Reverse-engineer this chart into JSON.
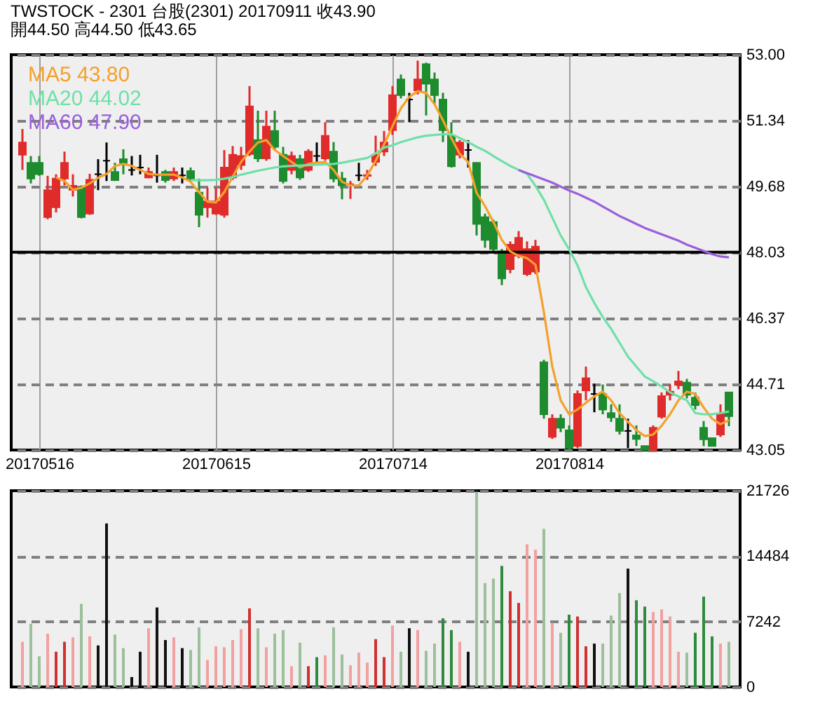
{
  "chart_data": [
    {
      "type": "candlestick",
      "title": "TWSTOCK  -  2301   台股(2301) 20170911     收43.90",
      "subtitle": "開44.50     高44.50     低43.65",
      "categories": [
        null,
        null,
        "20170516",
        null,
        null,
        null,
        null,
        null,
        null,
        null,
        null,
        null,
        null,
        null,
        null,
        null,
        null,
        null,
        null,
        null,
        null,
        null,
        null,
        "20170615",
        null,
        null,
        null,
        null,
        null,
        null,
        null,
        null,
        null,
        null,
        null,
        null,
        null,
        null,
        null,
        null,
        null,
        null,
        null,
        null,
        "20170714",
        null,
        null,
        null,
        null,
        null,
        null,
        null,
        null,
        null,
        null,
        null,
        null,
        null,
        null,
        null,
        null,
        null,
        null,
        null,
        null,
        "20170814",
        null,
        null,
        null,
        null,
        null,
        null,
        null,
        null,
        null,
        null,
        null,
        null,
        null,
        null,
        null,
        null,
        null,
        null,
        null
      ],
      "ohlc": [
        [
          50.48,
          51.13,
          50.1,
          50.79
        ],
        [
          50.28,
          50.45,
          49.76,
          49.88
        ],
        [
          50.28,
          50.45,
          49.95,
          49.99
        ],
        [
          48.91,
          49.95,
          48.86,
          49.59
        ],
        [
          49.16,
          49.99,
          49.03,
          49.88
        ],
        [
          49.88,
          50.56,
          49.71,
          50.28
        ],
        [
          49.6,
          49.99,
          49.43,
          49.7
        ],
        [
          49.65,
          49.71,
          48.88,
          48.91
        ],
        [
          49.0,
          50.0,
          48.97,
          49.85
        ],
        [
          49.99,
          50.37,
          49.59,
          49.99
        ],
        [
          50.33,
          50.79,
          49.82,
          50.33
        ],
        [
          50.05,
          50.28,
          49.82,
          49.84
        ],
        [
          50.37,
          50.62,
          49.99,
          50.28
        ],
        [
          50.1,
          50.45,
          49.96,
          50.1
        ],
        [
          50.16,
          50.48,
          49.99,
          50.16
        ],
        [
          49.91,
          50.16,
          49.91,
          50.05
        ],
        [
          49.96,
          50.48,
          49.78,
          49.96
        ],
        [
          50.05,
          50.1,
          49.78,
          49.84
        ],
        [
          49.88,
          50.16,
          49.82,
          50.05
        ],
        [
          49.96,
          50.16,
          49.76,
          49.96
        ],
        [
          50.07,
          50.16,
          49.82,
          49.88
        ],
        [
          49.53,
          49.88,
          48.66,
          48.97
        ],
        [
          49.16,
          49.65,
          48.9,
          49.31
        ],
        [
          49.0,
          49.65,
          48.97,
          49.31
        ],
        [
          48.97,
          50.6,
          48.9,
          50.16
        ],
        [
          49.91,
          50.7,
          49.85,
          50.48
        ],
        [
          50.22,
          50.68,
          50.1,
          50.45
        ],
        [
          50.5,
          52.21,
          50.45,
          51.7
        ],
        [
          50.85,
          51.59,
          50.3,
          50.39
        ],
        [
          50.39,
          51.59,
          50.33,
          51.19
        ],
        [
          51.08,
          51.59,
          50.62,
          50.68
        ],
        [
          50.48,
          50.68,
          49.76,
          49.82
        ],
        [
          50.1,
          50.56,
          49.99,
          50.45
        ],
        [
          50.37,
          50.48,
          49.85,
          49.91
        ],
        [
          50.1,
          50.62,
          50.05,
          50.56
        ],
        [
          50.45,
          50.79,
          50.28,
          50.45
        ],
        [
          50.39,
          51.3,
          50.33,
          50.96
        ],
        [
          50.56,
          50.8,
          49.79,
          49.88
        ],
        [
          49.88,
          50.05,
          49.36,
          49.71
        ],
        [
          49.74,
          49.82,
          49.37,
          49.74
        ],
        [
          49.96,
          50.28,
          49.82,
          49.96
        ],
        [
          49.95,
          50.1,
          49.85,
          49.97
        ],
        [
          50.3,
          50.96,
          50.2,
          50.48
        ],
        [
          50.56,
          51.08,
          50.45,
          50.79
        ],
        [
          51.1,
          52.21,
          50.98,
          51.98
        ],
        [
          52.38,
          52.5,
          51.9,
          51.98
        ],
        [
          51.87,
          52.04,
          51.3,
          51.87
        ],
        [
          52.1,
          52.85,
          52.0,
          52.38
        ],
        [
          52.76,
          52.8,
          51.47,
          52.27
        ],
        [
          52.38,
          52.55,
          51.75,
          51.98
        ],
        [
          51.87,
          52.04,
          50.8,
          51.1
        ],
        [
          50.96,
          51.3,
          50.16,
          50.19
        ],
        [
          50.48,
          50.85,
          50.39,
          50.79
        ],
        [
          50.6,
          50.85,
          50.16,
          50.6
        ],
        [
          50.28,
          50.28,
          48.45,
          48.74
        ],
        [
          48.91,
          49.0,
          48.14,
          48.34
        ],
        [
          48.79,
          48.85,
          48.0,
          48.11
        ],
        [
          48.05,
          48.11,
          47.2,
          47.37
        ],
        [
          47.6,
          48.3,
          47.5,
          48.22
        ],
        [
          47.94,
          48.56,
          47.88,
          48.39
        ],
        [
          47.48,
          48.3,
          47.43,
          48.11
        ],
        [
          47.54,
          48.34,
          47.48,
          48.17
        ],
        [
          45.26,
          45.32,
          43.84,
          43.95
        ],
        [
          43.38,
          43.95,
          43.33,
          43.84
        ],
        [
          43.84,
          43.95,
          43.5,
          43.61
        ],
        [
          43.55,
          43.67,
          43.05,
          43.1
        ],
        [
          43.15,
          44.55,
          43.1,
          44.46
        ],
        [
          44.55,
          45.15,
          44.3,
          44.86
        ],
        [
          44.46,
          44.72,
          44.0,
          44.46
        ],
        [
          44.46,
          44.7,
          43.95,
          44.07
        ],
        [
          43.98,
          44.2,
          43.76,
          43.87
        ],
        [
          43.84,
          44.2,
          43.44,
          43.53
        ],
        [
          43.53,
          43.84,
          43.1,
          43.53
        ],
        [
          43.42,
          43.67,
          43.15,
          43.33
        ],
        [
          43.15,
          43.15,
          43.05,
          43.05
        ],
        [
          43.05,
          43.67,
          43.05,
          43.61
        ],
        [
          43.89,
          44.5,
          43.84,
          44.41
        ],
        [
          44.44,
          44.7,
          44.3,
          44.52
        ],
        [
          44.69,
          45.04,
          44.58,
          44.78
        ],
        [
          44.75,
          44.84,
          44.35,
          44.44
        ],
        [
          44.37,
          44.5,
          44.07,
          44.18
        ],
        [
          43.61,
          43.78,
          43.15,
          43.32
        ],
        [
          43.35,
          43.35,
          43.15,
          43.15
        ],
        [
          43.44,
          44.2,
          43.38,
          43.95
        ],
        [
          44.5,
          44.5,
          43.65,
          43.9
        ]
      ],
      "colors": [
        "#e02b2b",
        "#1e8c2e",
        "#1e8c2e",
        "#e02b2b",
        "#e02b2b",
        "#e02b2b",
        "#e02b2b",
        "#1e8c2e",
        "#e02b2b",
        "#000000",
        "#000000",
        "#1e8c2e",
        "#1e8c2e",
        "#000000",
        "#000000",
        "#e02b2b",
        "#000000",
        "#1e8c2e",
        "#e02b2b",
        "#000000",
        "#1e8c2e",
        "#1e8c2e",
        "#e02b2b",
        "#e02b2b",
        "#e02b2b",
        "#e02b2b",
        "#e02b2b",
        "#e02b2b",
        "#1e8c2e",
        "#e02b2b",
        "#1e8c2e",
        "#1e8c2e",
        "#e02b2b",
        "#1e8c2e",
        "#e02b2b",
        "#000000",
        "#e02b2b",
        "#1e8c2e",
        "#1e8c2e",
        "#e02b2b",
        "#000000",
        "#e02b2b",
        "#e02b2b",
        "#e02b2b",
        "#e02b2b",
        "#1e8c2e",
        "#000000",
        "#e02b2b",
        "#1e8c2e",
        "#1e8c2e",
        "#1e8c2e",
        "#1e8c2e",
        "#e02b2b",
        "#000000",
        "#1e8c2e",
        "#1e8c2e",
        "#1e8c2e",
        "#1e8c2e",
        "#e02b2b",
        "#e02b2b",
        "#e02b2b",
        "#e02b2b",
        "#1e8c2e",
        "#e02b2b",
        "#1e8c2e",
        "#1e8c2e",
        "#e02b2b",
        "#e02b2b",
        "#000000",
        "#1e8c2e",
        "#1e8c2e",
        "#1e8c2e",
        "#000000",
        "#1e8c2e",
        "#1e8c2e",
        "#e02b2b",
        "#e02b2b",
        "#e02b2b",
        "#e02b2b",
        "#1e8c2e",
        "#1e8c2e",
        "#1e8c2e",
        "#1e8c2e",
        "#e02b2b",
        "#1e8c2e"
      ],
      "series": [
        {
          "type": "line",
          "name": "MA5 43.80",
          "color": "#f5a02a",
          "values": [
            null,
            null,
            null,
            null,
            49.91,
            49.82,
            49.6,
            49.65,
            49.76,
            49.9,
            50.0,
            50.2,
            50.25,
            50.2,
            50.1,
            50.0,
            49.98,
            49.98,
            49.98,
            49.91,
            49.8,
            49.54,
            49.3,
            49.28,
            49.54,
            49.93,
            50.3,
            50.56,
            50.79,
            50.85,
            50.6,
            50.45,
            50.3,
            50.16,
            50.25,
            50.28,
            50.3,
            50.1,
            49.8,
            49.71,
            49.71,
            49.96,
            50.33,
            50.74,
            51.2,
            51.65,
            51.94,
            52.08,
            52.04,
            51.75,
            51.35,
            50.9,
            50.5,
            50.3,
            49.52,
            49.19,
            48.79,
            48.34,
            48.05,
            47.94,
            47.88,
            47.71,
            46.52,
            45.15,
            44.3,
            43.95,
            44.07,
            44.24,
            44.4,
            44.52,
            44.3,
            43.98,
            43.76,
            43.55,
            43.4,
            43.44,
            43.66,
            43.95,
            44.3,
            44.52,
            44.46,
            44.12,
            43.84,
            43.7,
            43.8
          ]
        },
        {
          "type": "line",
          "name": "MA20 44.02",
          "color": "#6ee0a8",
          "values": [
            null,
            null,
            null,
            null,
            null,
            null,
            null,
            null,
            null,
            null,
            null,
            null,
            null,
            null,
            null,
            null,
            null,
            null,
            null,
            null,
            49.84,
            49.84,
            49.84,
            49.85,
            49.88,
            49.92,
            49.98,
            50.03,
            50.08,
            50.12,
            50.16,
            50.19,
            50.2,
            50.21,
            50.22,
            50.23,
            50.24,
            50.25,
            50.28,
            50.32,
            50.36,
            50.4,
            50.52,
            50.66,
            50.72,
            50.8,
            50.86,
            50.92,
            50.96,
            50.98,
            51.0,
            51.0,
            50.9,
            50.8,
            50.68,
            50.58,
            50.45,
            50.32,
            50.2,
            50.1,
            50.0,
            49.7,
            49.35,
            48.9,
            48.45,
            48.1,
            47.7,
            47.15,
            46.75,
            46.4,
            46.1,
            45.75,
            45.4,
            45.15,
            44.9,
            44.78,
            44.65,
            44.5,
            44.4,
            44.3,
            43.98,
            43.95,
            43.95,
            43.98,
            44.02
          ]
        },
        {
          "type": "line",
          "name": "MA60 47.90",
          "color": "#9a5fdc",
          "values": [
            null,
            null,
            null,
            null,
            null,
            null,
            null,
            null,
            null,
            null,
            null,
            null,
            null,
            null,
            null,
            null,
            null,
            null,
            null,
            null,
            null,
            null,
            null,
            null,
            null,
            null,
            null,
            null,
            null,
            null,
            null,
            null,
            null,
            null,
            null,
            null,
            null,
            null,
            null,
            null,
            null,
            null,
            null,
            null,
            null,
            null,
            null,
            null,
            null,
            null,
            null,
            null,
            null,
            null,
            null,
            null,
            null,
            null,
            null,
            50.1,
            50.02,
            49.94,
            49.86,
            49.78,
            49.68,
            49.58,
            49.5,
            49.4,
            49.3,
            49.18,
            49.06,
            48.94,
            48.84,
            48.74,
            48.64,
            48.56,
            48.48,
            48.4,
            48.32,
            48.22,
            48.14,
            48.06,
            47.98,
            47.92,
            47.9
          ]
        }
      ],
      "ylim": [
        43.05,
        53.0
      ],
      "yticks": [
        43.05,
        44.71,
        46.37,
        48.03,
        49.68,
        51.34,
        {
          "value": 53.0,
          "label": "53.00"
        }
      ],
      "grid": true,
      "legend": "top left",
      "ref_lines": [
        {
          "axis": "y",
          "value": 48.03,
          "color": "#000000",
          "line_style": "solid"
        }
      ]
    },
    {
      "type": "bar",
      "categories": [
        null,
        null,
        null,
        null,
        null,
        null,
        null,
        null,
        null,
        null,
        null,
        null,
        null,
        null,
        null,
        null,
        null,
        null,
        null,
        null,
        null,
        null,
        null,
        null,
        null,
        null,
        null,
        null,
        null,
        null,
        null,
        null,
        null,
        null,
        null,
        null,
        null,
        null,
        null,
        null,
        null,
        null,
        null,
        null,
        null,
        null,
        null,
        null,
        null,
        null,
        null,
        null,
        null,
        null,
        null,
        null,
        null,
        null,
        null,
        null,
        null,
        null,
        null,
        null,
        null,
        null,
        null,
        null,
        null,
        null,
        null,
        null,
        null,
        null,
        null,
        null,
        null,
        null,
        null,
        null,
        null,
        null,
        null,
        null,
        null
      ],
      "values": [
        5000,
        7000,
        3400,
        5900,
        3900,
        5000,
        5500,
        9200,
        5600,
        4600,
        18100,
        5800,
        4300,
        1100,
        3900,
        6500,
        8800,
        5200,
        5500,
        4300,
        4100,
        6600,
        3000,
        4500,
        4400,
        5200,
        6400,
        8700,
        6500,
        4400,
        5900,
        6300,
        2300,
        4900,
        2300,
        3300,
        3500,
        6600,
        3600,
        2400,
        3800,
        2700,
        5300,
        3300,
        6800,
        3900,
        6500,
        6300,
        4000,
        4800,
        7600,
        6300,
        5000,
        3900,
        21600,
        11500,
        12000,
        13400,
        10600,
        9300,
        15800,
        15200,
        17500,
        7100,
        6000,
        8000,
        7800,
        4500,
        4800,
        4800,
        7900,
        10400,
        13100,
        9600,
        8900,
        8300,
        8600,
        7800,
        3900,
        3800,
        6000,
        10000,
        5600,
        4800,
        5000
      ],
      "colors": [
        "#f2a0a0",
        "#9cbf9c",
        "#9cbf9c",
        "#f2a0a0",
        "#d03030",
        "#d03030",
        "#f2a0a0",
        "#9cbf9c",
        "#f2a0a0",
        "#111111",
        "#111111",
        "#9cbf9c",
        "#9cbf9c",
        "#111111",
        "#111111",
        "#f2a0a0",
        "#111111",
        "#111111",
        "#f2a0a0",
        "#111111",
        "#9cbf9c",
        "#9cbf9c",
        "#f2a0a0",
        "#f2a0a0",
        "#f2a0a0",
        "#f2a0a0",
        "#f2a0a0",
        "#d03030",
        "#9cbf9c",
        "#f2a0a0",
        "#9cbf9c",
        "#9cbf9c",
        "#f2a0a0",
        "#9cbf9c",
        "#d03030",
        "#2e8b3e",
        "#f2a0a0",
        "#9cbf9c",
        "#9cbf9c",
        "#f2a0a0",
        "#f2a0a0",
        "#f2a0a0",
        "#d03030",
        "#d03030",
        "#f2a0a0",
        "#9cbf9c",
        "#111111",
        "#f2a0a0",
        "#9cbf9c",
        "#9cbf9c",
        "#2e8b3e",
        "#2e8b3e",
        "#f2a0a0",
        "#111111",
        "#9cbf9c",
        "#9cbf9c",
        "#9cbf9c",
        "#2e8b3e",
        "#d03030",
        "#d03030",
        "#f2a0a0",
        "#f2a0a0",
        "#9cbf9c",
        "#f2a0a0",
        "#9cbf9c",
        "#2e8b3e",
        "#d03030",
        "#d03030",
        "#111111",
        "#9cbf9c",
        "#9cbf9c",
        "#9cbf9c",
        "#111111",
        "#2e8b3e",
        "#2e8b3e",
        "#f2a0a0",
        "#f2a0a0",
        "#f2a0a0",
        "#f2a0a0",
        "#9cbf9c",
        "#2e8b3e",
        "#2e8b3e",
        "#2e8b3e",
        "#f2a0a0",
        "#9cbf9c"
      ],
      "ylim": [
        0,
        21726
      ],
      "yticks": [
        0,
        7242,
        14484,
        21726
      ],
      "grid": "y",
      "tick_labels": "y"
    }
  ]
}
